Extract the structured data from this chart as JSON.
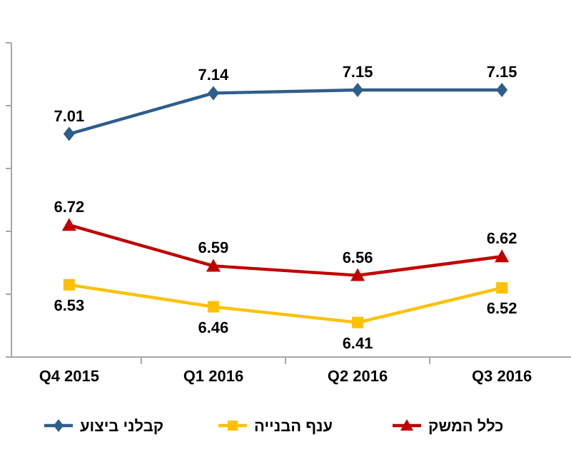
{
  "chart_data": {
    "type": "line",
    "categories": [
      "Q4 2015",
      "Q1 2016",
      "Q2 2016",
      "Q3 2016"
    ],
    "series": [
      {
        "name": "קבלני ביצוע",
        "color": "#2f5d8c",
        "marker": "diamond",
        "values": [
          7.01,
          7.14,
          7.15,
          7.15
        ]
      },
      {
        "name": "ענף הבנייה",
        "color": "#ffc000",
        "marker": "square",
        "values": [
          6.53,
          6.46,
          6.41,
          6.52
        ]
      },
      {
        "name": "כלל המשק",
        "color": "#c00000",
        "marker": "triangle",
        "values": [
          6.72,
          6.59,
          6.56,
          6.62
        ]
      }
    ],
    "ylim": [
      6.3,
      7.3
    ],
    "yticks": [
      {
        "value": 6.3,
        "label": null
      },
      {
        "value": 6.5,
        "label": null
      },
      {
        "value": 6.7,
        "label": null
      },
      {
        "value": 6.9,
        "label": null
      },
      {
        "value": 7.1,
        "label": null
      },
      {
        "value": 7.3,
        "label": null
      }
    ],
    "tick_labels": "x",
    "data_labels": true,
    "legend": "bottom",
    "line_style": "solid"
  }
}
